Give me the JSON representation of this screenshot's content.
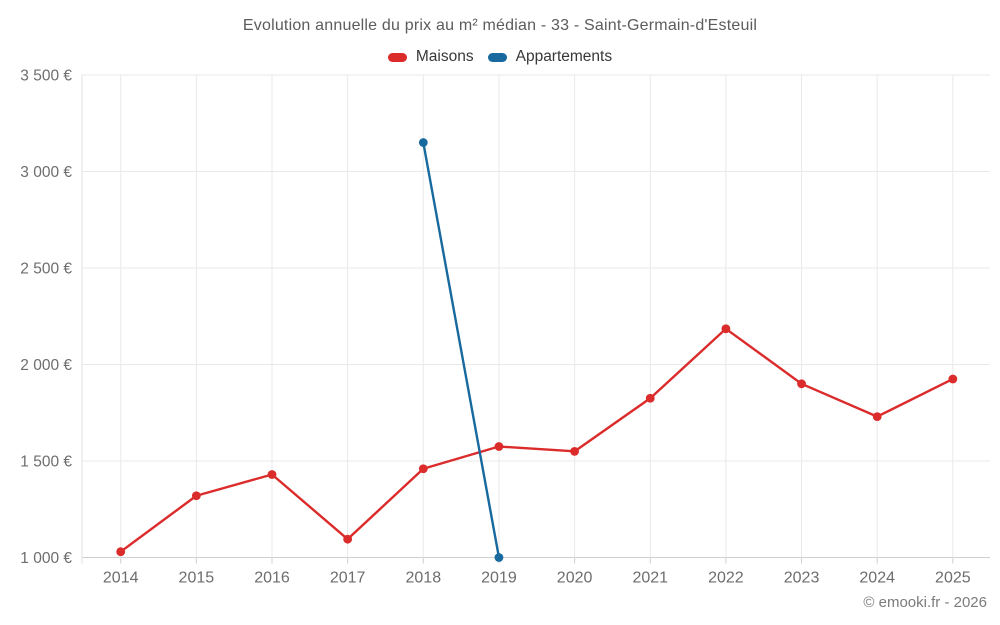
{
  "chart_data": {
    "type": "line",
    "title": "Evolution annuelle du prix au m² médian - 33 - Saint-Germain-d'Esteuil",
    "categories": [
      "2014",
      "2015",
      "2016",
      "2017",
      "2018",
      "2019",
      "2020",
      "2021",
      "2022",
      "2023",
      "2024",
      "2025"
    ],
    "series": [
      {
        "name": "Maisons",
        "color": "#db2b2b",
        "values": [
          1030,
          1320,
          1430,
          1095,
          1460,
          1575,
          1550,
          1825,
          2185,
          1900,
          1730,
          1925
        ]
      },
      {
        "name": "Appartements",
        "color": "#17699e",
        "values": [
          null,
          null,
          null,
          null,
          3150,
          1000,
          null,
          null,
          null,
          null,
          null,
          null
        ]
      }
    ],
    "xlabel": "",
    "ylabel": "",
    "ylim": [
      1000,
      3500
    ],
    "yticks": [
      1000,
      1500,
      2000,
      2500,
      3000,
      3500
    ],
    "ytick_labels": [
      "1 000 €",
      "1 500 €",
      "2 000 €",
      "2 500 €",
      "3 000 €",
      "3 500 €"
    ],
    "grid": true,
    "legend_position": "top"
  },
  "colors": {
    "grid_line": "#e9e9e9",
    "axis_line": "#cfcfcf",
    "left_axis_line": "#e2e2e2",
    "tick_label": "#6d6d6d",
    "title_text": "#5c5c5c",
    "legend_text": "#383838",
    "credit_text": "#7b7b7b"
  },
  "footer": {
    "credit": "© emooki.fr - 2026"
  }
}
